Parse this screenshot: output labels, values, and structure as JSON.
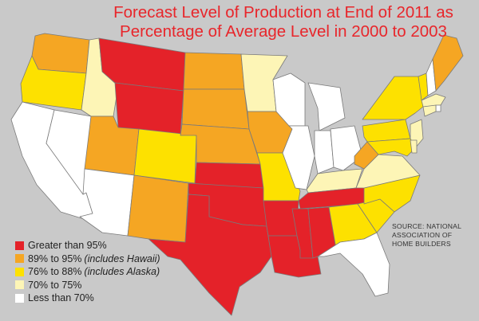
{
  "title": {
    "line1": "Forecast Level of Production at End of 2011 as",
    "line2": "Percentage of Average Level in 2000 to 2003"
  },
  "source": {
    "line1": "SOURCE: NATIONAL",
    "line2": "ASSOCIATION OF",
    "line3": "HOME BUILDERS"
  },
  "colors": {
    "red": "#e42229",
    "orange": "#f5a623",
    "yellow": "#fde100",
    "pale": "#fdf5b6",
    "white": "#ffffff",
    "background": "#c9c9c9",
    "title": "#e8262b"
  },
  "legend": [
    {
      "id": "gt95",
      "label": "Greater than 95%",
      "note": "",
      "color": "#e42229"
    },
    {
      "id": "89-95",
      "label": "89% to 95%",
      "note": "(includes Hawaii)",
      "color": "#f5a623"
    },
    {
      "id": "76-88",
      "label": "76% to 88%",
      "note": "(includes Alaska)",
      "color": "#fde100"
    },
    {
      "id": "70-75",
      "label": "70% to 75%",
      "note": "",
      "color": "#fdf5b6"
    },
    {
      "id": "lt70",
      "label": "Less than 70%",
      "note": "",
      "color": "#ffffff"
    }
  ],
  "state_categories": {
    "WA": "89-95",
    "OR": "76-88",
    "CA": "lt70",
    "NV": "lt70",
    "ID": "70-75",
    "MT": "gt95",
    "WY": "gt95",
    "UT": "89-95",
    "AZ": "lt70",
    "CO": "76-88",
    "NM": "89-95",
    "ND": "89-95",
    "SD": "89-95",
    "NE": "89-95",
    "KS": "gt95",
    "OK": "gt95",
    "TX": "gt95",
    "MN": "70-75",
    "IA": "89-95",
    "MO": "76-88",
    "AR": "gt95",
    "LA": "gt95",
    "WI": "lt70",
    "IL": "lt70",
    "MI": "lt70",
    "IN": "lt70",
    "OH": "lt70",
    "KY": "70-75",
    "TN": "gt95",
    "MS": "gt95",
    "AL": "gt95",
    "GA": "76-88",
    "FL": "lt70",
    "SC": "76-88",
    "NC": "76-88",
    "VA": "70-75",
    "WV": "89-95",
    "PA": "76-88",
    "NY": "76-88",
    "VT": "76-88",
    "NH": "lt70",
    "ME": "89-95",
    "MA": "70-75",
    "CT": "70-75",
    "RI": "lt70",
    "NJ": "70-75",
    "DE": "70-75",
    "MD": "76-88"
  }
}
